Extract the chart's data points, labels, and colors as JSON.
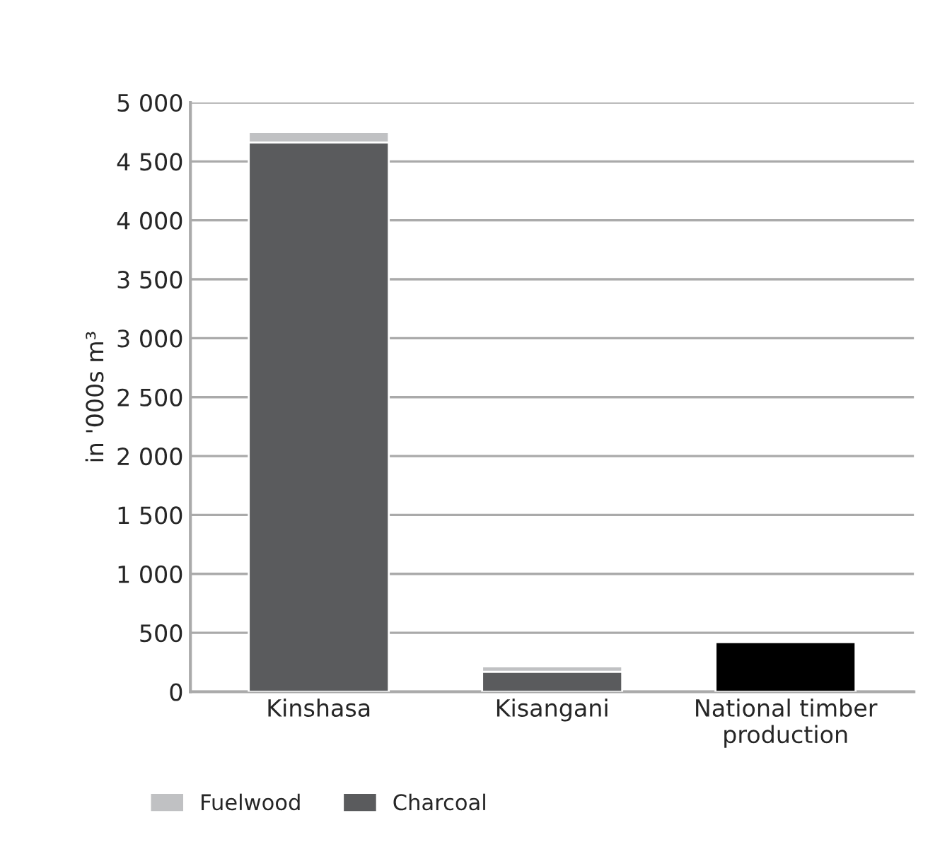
{
  "chart_data": {
    "type": "bar",
    "ylabel": "in '000s m³",
    "stacked": true,
    "categories": [
      "Kinshasa",
      "Kisangani",
      "National timber\nproduction"
    ],
    "series": [
      {
        "name": "Charcoal",
        "color": "#5a5b5d",
        "values": [
          4660,
          170,
          null
        ]
      },
      {
        "name": "Fuelwood",
        "color": "#c0c1c3",
        "values": [
          90,
          45,
          null
        ]
      },
      {
        "color": "#000000",
        "values": [
          null,
          null,
          420
        ]
      }
    ],
    "ylim": [
      0,
      5000
    ],
    "yticks": [
      0,
      500,
      {
        "value": 1000,
        "label": "1 000"
      },
      {
        "value": 1500,
        "label": "1 500"
      },
      {
        "value": 2000,
        "label": "2 000"
      },
      {
        "value": 2500,
        "label": "2 500"
      },
      {
        "value": 3000,
        "label": "3 000"
      },
      {
        "value": 3500,
        "label": "3 500"
      },
      {
        "value": 4000,
        "label": "4 000"
      },
      {
        "value": 4500,
        "label": "4 500"
      },
      {
        "value": 5000,
        "label": "5 000"
      }
    ],
    "grid": "y",
    "legend": "bottom left"
  }
}
